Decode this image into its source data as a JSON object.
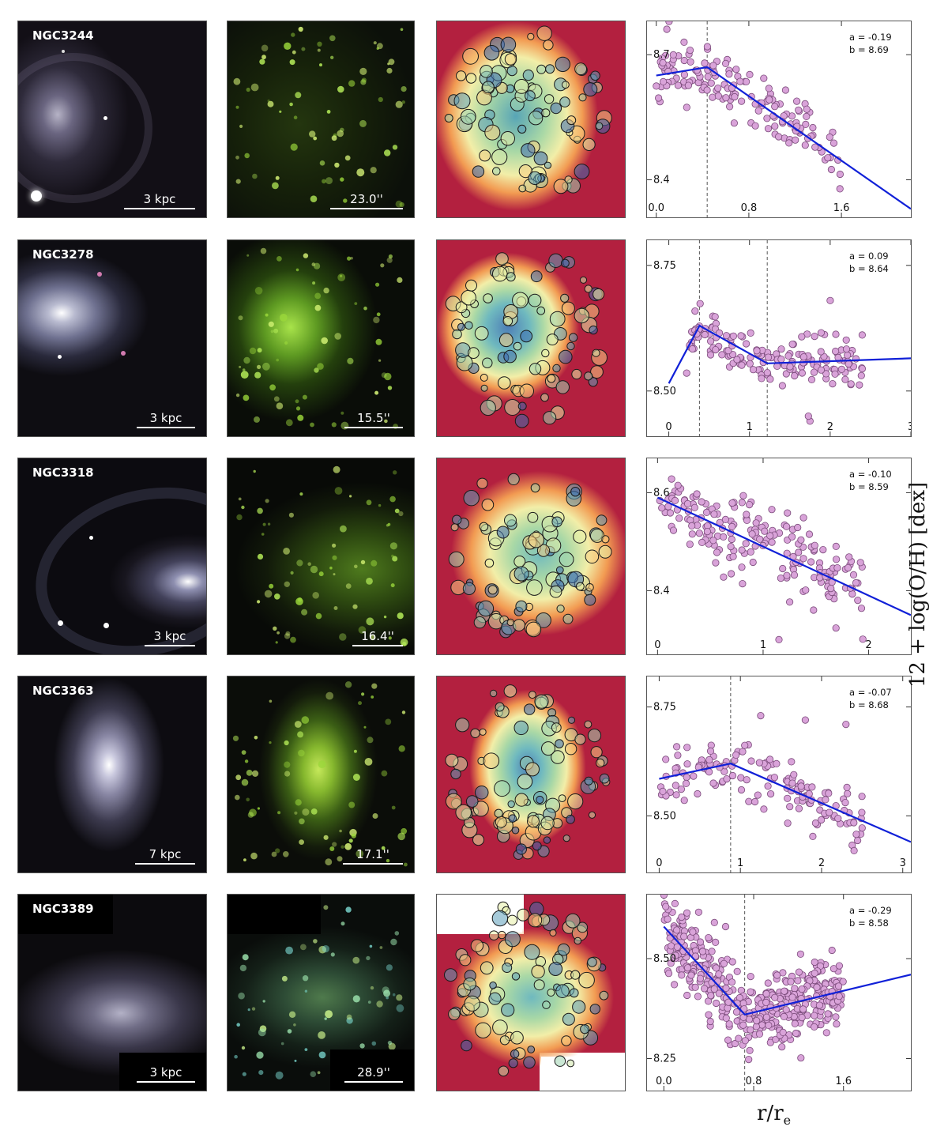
{
  "y_axis_label": "12 + log(O/H) [dex]",
  "x_axis_label": "r/r",
  "x_axis_label_sub": "e",
  "rows": [
    {
      "galaxy": "NGC3244",
      "kpc_scale": "3 kpc",
      "arcsec_scale": "23.0''",
      "plot": {
        "coef_a": "a = -0.19",
        "coef_b": "b = 8.69",
        "yticks": [
          {
            "v": 8.7,
            "t": "8.7"
          },
          {
            "v": 8.4,
            "t": "8.4"
          }
        ],
        "xticks": [
          {
            "v": 0.0,
            "t": "0.0"
          },
          {
            "v": 0.8,
            "t": "0.8"
          },
          {
            "v": 1.6,
            "t": "1.6"
          }
        ],
        "xlim": [
          -0.08,
          2.2
        ],
        "ylim": [
          8.31,
          8.78
        ],
        "breaks": [
          0.44
        ],
        "fit": [
          [
            0.0,
            8.65
          ],
          [
            0.44,
            8.67
          ],
          [
            2.2,
            8.33
          ]
        ],
        "points": {
          "count": 160,
          "seed": 11,
          "xmin": 0.0,
          "xmax": 1.6,
          "scatter": 0.035,
          "outliers": [
            [
              0.24,
              8.73
            ]
          ]
        }
      }
    },
    {
      "galaxy": "NGC3278",
      "kpc_scale": "3 kpc",
      "arcsec_scale": "15.5''",
      "plot": {
        "coef_a": "a = 0.09",
        "coef_b": "b = 8.64",
        "yticks": [
          {
            "v": 8.75,
            "t": "8.75"
          },
          {
            "v": 8.5,
            "t": "8.50"
          }
        ],
        "xticks": [
          {
            "v": 0,
            "t": "0"
          },
          {
            "v": 1,
            "t": "1"
          },
          {
            "v": 2,
            "t": "2"
          },
          {
            "v": 3,
            "t": "3"
          }
        ],
        "xlim": [
          -0.27,
          3.0
        ],
        "ylim": [
          8.41,
          8.8
        ],
        "breaks": [
          0.38,
          1.22
        ],
        "fit": [
          [
            0.0,
            8.515
          ],
          [
            0.38,
            8.63
          ],
          [
            1.22,
            8.555
          ],
          [
            3.0,
            8.565
          ]
        ],
        "points": {
          "count": 170,
          "seed": 23,
          "xmin": 0.2,
          "xmax": 2.4,
          "scatter": 0.022,
          "outliers": [
            [
              2.0,
              8.68
            ],
            [
              1.75,
              8.44
            ],
            [
              1.73,
              8.45
            ]
          ]
        }
      }
    },
    {
      "galaxy": "NGC3318",
      "kpc_scale": "3 kpc",
      "arcsec_scale": "16.4''",
      "plot": {
        "coef_a": "a = -0.10",
        "coef_b": "b = 8.59",
        "yticks": [
          {
            "v": 8.6,
            "t": "8.6"
          },
          {
            "v": 8.4,
            "t": "8.4"
          }
        ],
        "xticks": [
          {
            "v": 0,
            "t": "0"
          },
          {
            "v": 1,
            "t": "1"
          },
          {
            "v": 2,
            "t": "2"
          }
        ],
        "xlim": [
          -0.1,
          2.4
        ],
        "ylim": [
          8.27,
          8.67
        ],
        "breaks": [],
        "fit": [
          [
            0.0,
            8.59
          ],
          [
            2.4,
            8.35
          ]
        ],
        "points": {
          "count": 200,
          "seed": 37,
          "xmin": 0.0,
          "xmax": 1.95,
          "scatter": 0.04,
          "outliers": [
            [
              1.15,
              8.3
            ]
          ]
        }
      }
    },
    {
      "galaxy": "NGC3363",
      "kpc_scale": "7 kpc",
      "arcsec_scale": "17.1''",
      "plot": {
        "coef_a": "a = -0.07",
        "coef_b": "b = 8.68",
        "yticks": [
          {
            "v": 8.75,
            "t": "8.75"
          },
          {
            "v": 8.5,
            "t": "8.50"
          }
        ],
        "xticks": [
          {
            "v": 0,
            "t": "0"
          },
          {
            "v": 1,
            "t": "1"
          },
          {
            "v": 2,
            "t": "2"
          },
          {
            "v": 3,
            "t": "3"
          }
        ],
        "xlim": [
          -0.15,
          3.1
        ],
        "ylim": [
          8.37,
          8.82
        ],
        "breaks": [
          0.88
        ],
        "fit": [
          [
            0.0,
            8.585
          ],
          [
            0.88,
            8.62
          ],
          [
            3.1,
            8.44
          ]
        ],
        "points": {
          "count": 150,
          "seed": 53,
          "xmin": 0.0,
          "xmax": 2.5,
          "scatter": 0.03,
          "outliers": [
            [
              1.25,
              8.73
            ],
            [
              1.8,
              8.72
            ],
            [
              2.4,
              8.42
            ],
            [
              2.3,
              8.71
            ]
          ]
        }
      }
    },
    {
      "galaxy": "NGC3389",
      "kpc_scale": "3 kpc",
      "arcsec_scale": "28.9''",
      "plot": {
        "coef_a": "a = -0.29",
        "coef_b": "b = 8.58",
        "yticks": [
          {
            "v": 8.5,
            "t": "8.50"
          },
          {
            "v": 8.25,
            "t": "8.25"
          }
        ],
        "xticks": [
          {
            "v": 0.0,
            "t": "0.0"
          },
          {
            "v": 0.8,
            "t": "0.8"
          },
          {
            "v": 1.6,
            "t": "1.6"
          }
        ],
        "xlim": [
          -0.15,
          2.2
        ],
        "ylim": [
          8.17,
          8.66
        ],
        "breaks": [
          0.72
        ],
        "fit": [
          [
            0.0,
            8.58
          ],
          [
            0.72,
            8.36
          ],
          [
            2.2,
            8.46
          ]
        ],
        "points": {
          "count": 450,
          "seed": 71,
          "xmin": 0.0,
          "xmax": 1.6,
          "scatter": 0.045,
          "outliers": [
            [
              0.45,
              8.59
            ],
            [
              0.55,
              8.58
            ]
          ]
        }
      }
    }
  ]
}
